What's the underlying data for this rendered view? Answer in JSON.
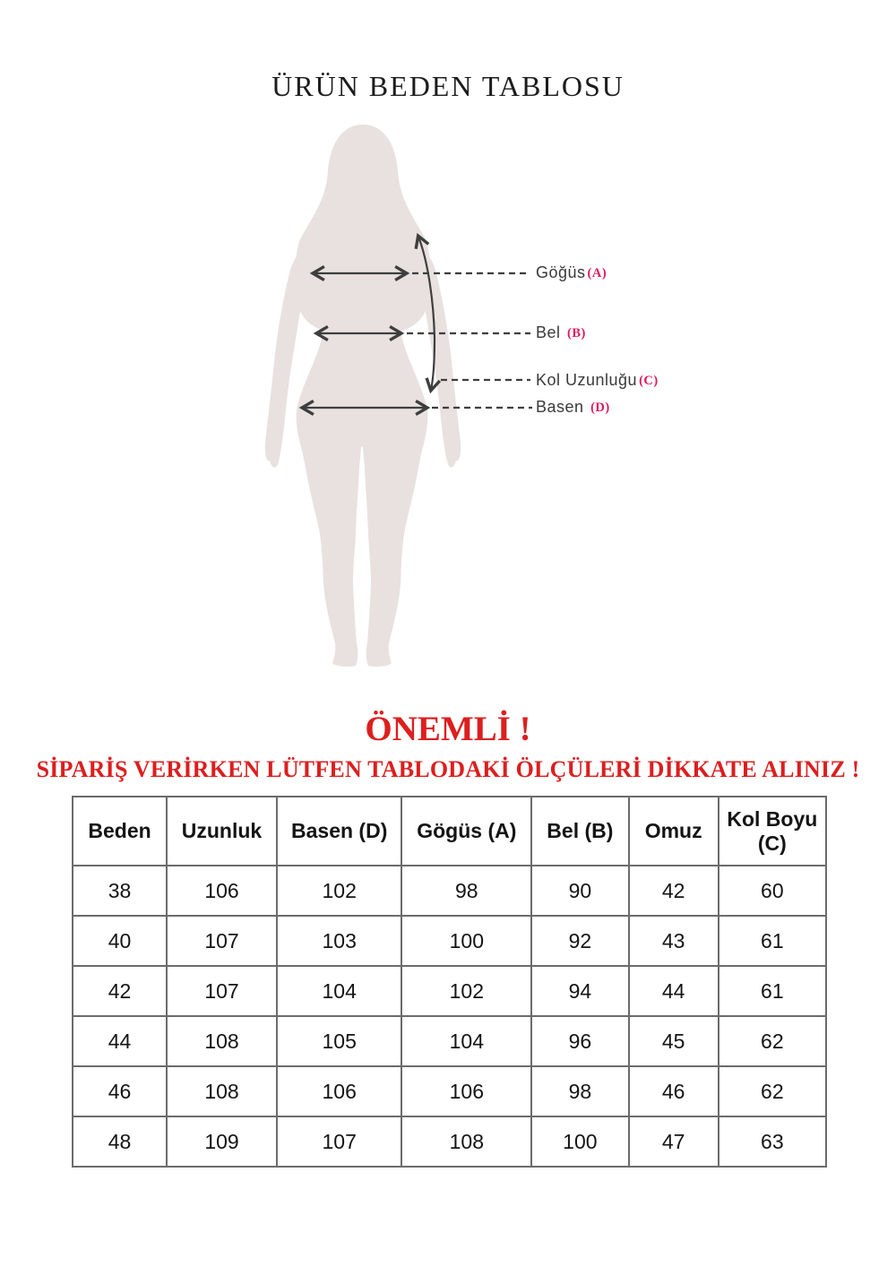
{
  "page": {
    "title": "ÜRÜN BEDEN TABLOSU"
  },
  "diagram": {
    "labels": [
      {
        "text": "Göğüs",
        "letter": "(A)"
      },
      {
        "text": "Bel",
        "letter": "(B)"
      },
      {
        "text": "Kol Uzunluğu",
        "letter": "(C)"
      },
      {
        "text": "Basen",
        "letter": "(D)"
      }
    ],
    "colors": {
      "silhouette": "#e8e1e0",
      "line": "#3e3e3e",
      "letter_pink": "#e0175f"
    }
  },
  "notice": {
    "heading": "ÖNEMLİ !",
    "line": "SİPARİŞ VERİRKEN LÜTFEN TABLODAKİ ÖLÇÜLERİ DİKKATE ALINIZ !",
    "color": "#dd1e1e"
  },
  "size_table": {
    "headers": [
      "Beden",
      "Uzunluk",
      "Basen (D)",
      "Gögüs (A)",
      "Bel (B)",
      "Omuz",
      "Kol Boyu (C)"
    ],
    "rows": [
      [
        "38",
        "106",
        "102",
        "98",
        "90",
        "42",
        "60"
      ],
      [
        "40",
        "107",
        "103",
        "100",
        "92",
        "43",
        "61"
      ],
      [
        "42",
        "107",
        "104",
        "102",
        "94",
        "44",
        "61"
      ],
      [
        "44",
        "108",
        "105",
        "104",
        "96",
        "45",
        "62"
      ],
      [
        "46",
        "108",
        "106",
        "106",
        "98",
        "46",
        "62"
      ],
      [
        "48",
        "109",
        "107",
        "108",
        "100",
        "47",
        "63"
      ]
    ]
  }
}
